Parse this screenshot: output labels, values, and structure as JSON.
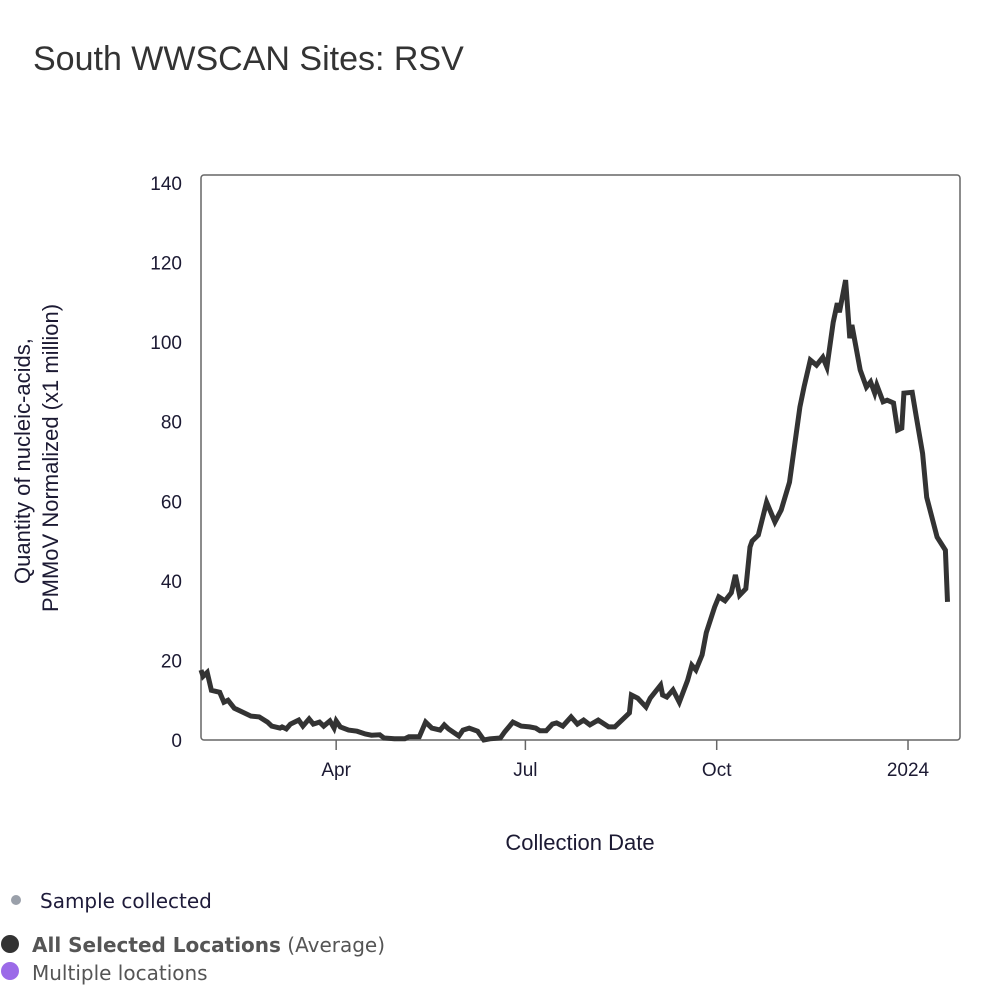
{
  "title": "South WWSCAN Sites: RSV",
  "chart_data": {
    "type": "line",
    "title": "South WWSCAN Sites: RSV",
    "xlabel": "Collection Date",
    "ylabel": [
      "Quantity of nucleic-acids,",
      "PMMoV Normalized (x1 million)"
    ],
    "xlim": [
      "2023-01-26",
      "2024-01-26"
    ],
    "ylim": [
      0,
      140
    ],
    "yticks": [
      0,
      20,
      40,
      60,
      80,
      100,
      120,
      140
    ],
    "xticks": [
      {
        "date": "2023-04-01",
        "label": "Apr"
      },
      {
        "date": "2023-07-01",
        "label": "Jul"
      },
      {
        "date": "2023-10-01",
        "label": "Oct"
      },
      {
        "date": "2024-01-01",
        "label": "2024"
      }
    ],
    "grid": false,
    "series": [
      {
        "name": "All Selected Locations",
        "color": "#333333",
        "points": [
          [
            "2023-01-26",
            17.6
          ],
          [
            "2023-01-27",
            16
          ],
          [
            "2023-01-29",
            17
          ],
          [
            "2023-01-31",
            12.5
          ],
          [
            "2023-02-04",
            12
          ],
          [
            "2023-02-06",
            9.5
          ],
          [
            "2023-02-08",
            10
          ],
          [
            "2023-02-11",
            8
          ],
          [
            "2023-02-15",
            7
          ],
          [
            "2023-02-19",
            6
          ],
          [
            "2023-02-23",
            5.8
          ],
          [
            "2023-02-27",
            4.5
          ],
          [
            "2023-03-01",
            3.5
          ],
          [
            "2023-03-05",
            3
          ],
          [
            "2023-03-06",
            3.3
          ],
          [
            "2023-03-08",
            2.8
          ],
          [
            "2023-03-10",
            4
          ],
          [
            "2023-03-14",
            5
          ],
          [
            "2023-03-16",
            3.5
          ],
          [
            "2023-03-19",
            5.3
          ],
          [
            "2023-03-21",
            4
          ],
          [
            "2023-03-24",
            4.5
          ],
          [
            "2023-03-26",
            3.5
          ],
          [
            "2023-03-29",
            4.8
          ],
          [
            "2023-03-31",
            3
          ],
          [
            "2023-04-01",
            4.8
          ],
          [
            "2023-04-03",
            3.3
          ],
          [
            "2023-04-07",
            2.5
          ],
          [
            "2023-04-11",
            2.2
          ],
          [
            "2023-04-15",
            1.5
          ],
          [
            "2023-04-18",
            1.2
          ],
          [
            "2023-04-22",
            1.3
          ],
          [
            "2023-04-24",
            0.5
          ],
          [
            "2023-04-29",
            0.3
          ],
          [
            "2023-05-04",
            0.3
          ],
          [
            "2023-05-06",
            0.8
          ],
          [
            "2023-05-11",
            0.8
          ],
          [
            "2023-05-14",
            4.5
          ],
          [
            "2023-05-17",
            3
          ],
          [
            "2023-05-21",
            2.5
          ],
          [
            "2023-05-23",
            3.8
          ],
          [
            "2023-05-25",
            2.8
          ],
          [
            "2023-05-30",
            1
          ],
          [
            "2023-06-01",
            2.5
          ],
          [
            "2023-06-04",
            3
          ],
          [
            "2023-06-08",
            2.2
          ],
          [
            "2023-06-11",
            0
          ],
          [
            "2023-06-14",
            0.3
          ],
          [
            "2023-06-19",
            0.5
          ],
          [
            "2023-06-21",
            2
          ],
          [
            "2023-06-25",
            4.5
          ],
          [
            "2023-06-29",
            3.5
          ],
          [
            "2023-07-03",
            3.3
          ],
          [
            "2023-07-06",
            3
          ],
          [
            "2023-07-08",
            2.3
          ],
          [
            "2023-07-11",
            2.3
          ],
          [
            "2023-07-14",
            4
          ],
          [
            "2023-07-16",
            4.3
          ],
          [
            "2023-07-19",
            3.5
          ],
          [
            "2023-07-23",
            5.8
          ],
          [
            "2023-07-26",
            4
          ],
          [
            "2023-07-29",
            5
          ],
          [
            "2023-08-01",
            3.8
          ],
          [
            "2023-08-05",
            5
          ],
          [
            "2023-08-10",
            3.3
          ],
          [
            "2023-08-13",
            3.3
          ],
          [
            "2023-08-20",
            6.8
          ],
          [
            "2023-08-21",
            11.3
          ],
          [
            "2023-08-24",
            10.5
          ],
          [
            "2023-08-28",
            8.3
          ],
          [
            "2023-08-30",
            10.5
          ],
          [
            "2023-09-04",
            13.8
          ],
          [
            "2023-09-05",
            11.3
          ],
          [
            "2023-09-07",
            10.8
          ],
          [
            "2023-09-10",
            12.6
          ],
          [
            "2023-09-13",
            9.5
          ],
          [
            "2023-09-17",
            15
          ],
          [
            "2023-09-19",
            18.8
          ],
          [
            "2023-09-21",
            17.6
          ],
          [
            "2023-09-24",
            21.4
          ],
          [
            "2023-09-26",
            27
          ],
          [
            "2023-09-30",
            33.4
          ],
          [
            "2023-10-02",
            36
          ],
          [
            "2023-10-05",
            35
          ],
          [
            "2023-10-08",
            37
          ],
          [
            "2023-10-10",
            41.5
          ],
          [
            "2023-10-12",
            36.4
          ],
          [
            "2023-10-15",
            38
          ],
          [
            "2023-10-17",
            48.5
          ],
          [
            "2023-10-18",
            50
          ],
          [
            "2023-10-21",
            51.5
          ],
          [
            "2023-10-25",
            59.8
          ],
          [
            "2023-10-29",
            54.8
          ],
          [
            "2023-11-01",
            57.8
          ],
          [
            "2023-11-05",
            64.8
          ],
          [
            "2023-11-10",
            83.7
          ],
          [
            "2023-11-12",
            88.7
          ],
          [
            "2023-11-15",
            95.5
          ],
          [
            "2023-11-18",
            94.2
          ],
          [
            "2023-11-21",
            96.2
          ],
          [
            "2023-11-23",
            93.7
          ],
          [
            "2023-11-26",
            105
          ],
          [
            "2023-11-28",
            109.8
          ],
          [
            "2023-11-29",
            107.5
          ],
          [
            "2023-12-02",
            115.6
          ],
          [
            "2023-12-04",
            101
          ],
          [
            "2023-12-05",
            104.3
          ],
          [
            "2023-12-09",
            93
          ],
          [
            "2023-12-12",
            88.7
          ],
          [
            "2023-12-14",
            90
          ],
          [
            "2023-12-16",
            87.2
          ],
          [
            "2023-12-17",
            89.2
          ],
          [
            "2023-12-20",
            85
          ],
          [
            "2023-12-22",
            85.4
          ],
          [
            "2023-12-25",
            84.7
          ],
          [
            "2023-12-27",
            77.9
          ],
          [
            "2023-12-29",
            78.4
          ],
          [
            "2023-12-30",
            87.2
          ],
          [
            "2024-01-03",
            87.4
          ],
          [
            "2024-01-05",
            81.2
          ],
          [
            "2024-01-08",
            72
          ],
          [
            "2024-01-10",
            61
          ],
          [
            "2024-01-15",
            51
          ],
          [
            "2024-01-18",
            48.5
          ],
          [
            "2024-01-19",
            47.7
          ],
          [
            "2024-01-20",
            34.7
          ]
        ]
      }
    ]
  },
  "legend": {
    "sample": {
      "label": "Sample collected",
      "color": "#9aa0aa"
    },
    "average": {
      "label_bold": "All Selected Locations",
      "label_suffix": "(Average)",
      "color": "#333333"
    },
    "multiple": {
      "label": "Multiple locations",
      "color": "#9b6ae8"
    }
  }
}
